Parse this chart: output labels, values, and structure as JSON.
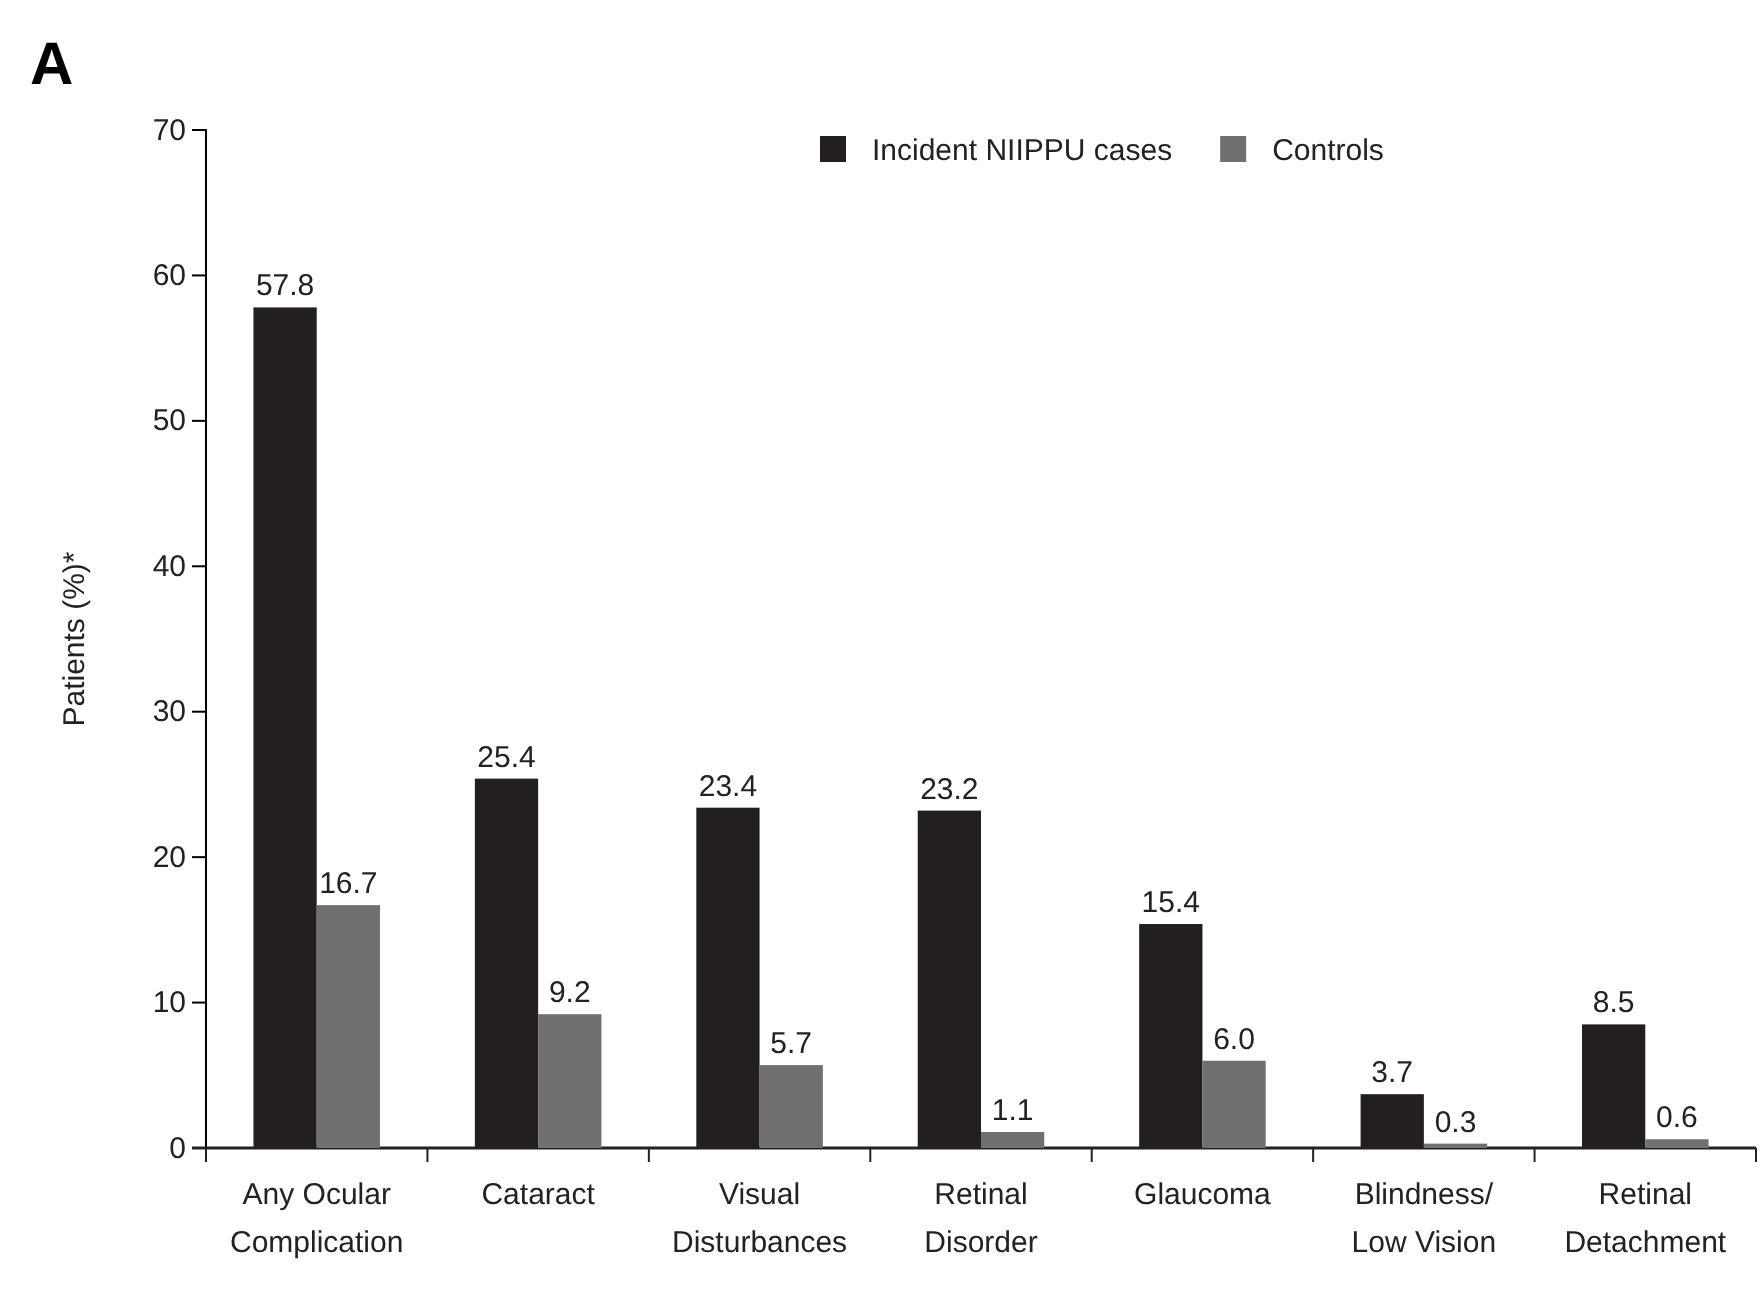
{
  "chart_data": {
    "type": "bar",
    "title": "A",
    "ylabel": "Patients (%)*",
    "categories": [
      "Any Ocular\nComplication",
      "Cataract",
      "Visual\nDisturbances",
      "Retinal\nDisorder",
      "Glaucoma",
      "Blindness/\nLow Vision",
      "Retinal\nDetachment"
    ],
    "series": [
      {
        "name": "Incident NIIPPU cases",
        "color": "#231f20",
        "values": [
          57.8,
          25.4,
          23.4,
          23.2,
          15.4,
          3.7,
          8.5
        ],
        "value_labels": [
          "57.8",
          "25.4",
          "23.4",
          "23.2",
          "15.4",
          "3.7",
          "8.5"
        ]
      },
      {
        "name": "Controls",
        "color": "#707070",
        "values": [
          16.7,
          9.2,
          5.7,
          1.1,
          6.0,
          0.3,
          0.6
        ],
        "value_labels": [
          "16.7",
          "9.2",
          "5.7",
          "1.1",
          "6.0",
          "0.3",
          "0.6"
        ]
      }
    ],
    "ylim": [
      0,
      70
    ],
    "yticks": [
      0,
      10,
      20,
      30,
      40,
      50,
      60,
      70
    ],
    "legend": "top right"
  }
}
